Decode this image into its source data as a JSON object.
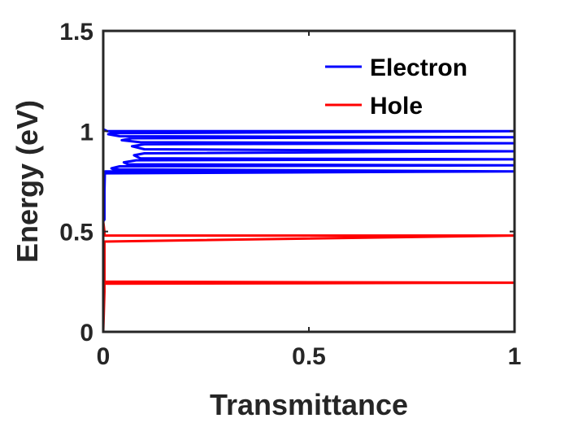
{
  "chart_data": {
    "type": "line",
    "xlabel": "Transmittance",
    "ylabel": "Energy (eV)",
    "xlim": [
      0,
      1
    ],
    "ylim": [
      0,
      1.5
    ],
    "xticks": [
      0,
      0.5,
      1
    ],
    "xtick_labels": [
      "0",
      "0.5",
      "1"
    ],
    "yticks": [
      0,
      0.5,
      1,
      1.5
    ],
    "ytick_labels": [
      "0",
      "0.5",
      "1",
      "1.5"
    ],
    "grid": false,
    "legend_position": "top-right",
    "series": [
      {
        "name": "Electron",
        "color": "#0000ff",
        "x": [
          0,
          0,
          0.005,
          0.01,
          1,
          0.02,
          0.012,
          0.04,
          1,
          0.07,
          0.045,
          0.09,
          1,
          0.1,
          0.07,
          0.1,
          1,
          0.1,
          0.075,
          0.09,
          1,
          0.08,
          0.05,
          0.06,
          1,
          0.04,
          0.02,
          0.025,
          1,
          0.015,
          0.005,
          0.005,
          1,
          0.004,
          0.003,
          0.003,
          0.003,
          0,
          0
        ],
        "y": [
          1.36,
          1.01,
          1.005,
          1.0,
          1.0,
          0.99,
          0.985,
          0.975,
          0.97,
          0.965,
          0.955,
          0.945,
          0.94,
          0.935,
          0.925,
          0.91,
          0.9,
          0.89,
          0.88,
          0.865,
          0.86,
          0.855,
          0.845,
          0.835,
          0.83,
          0.825,
          0.815,
          0.81,
          0.8,
          0.8,
          0.795,
          0.8,
          0.8,
          0.79,
          0.7,
          0.6,
          0.56,
          0.55,
          0.55
        ]
      },
      {
        "name": "Hole",
        "color": "#ff0000",
        "x": [
          0,
          0.003,
          0.003,
          1,
          0.003,
          0.003,
          1,
          0.003,
          0.003,
          0
        ],
        "y": [
          0.55,
          0.5,
          0.48,
          0.48,
          0.45,
          0.25,
          0.245,
          0.24,
          0.2,
          0
        ]
      }
    ]
  }
}
